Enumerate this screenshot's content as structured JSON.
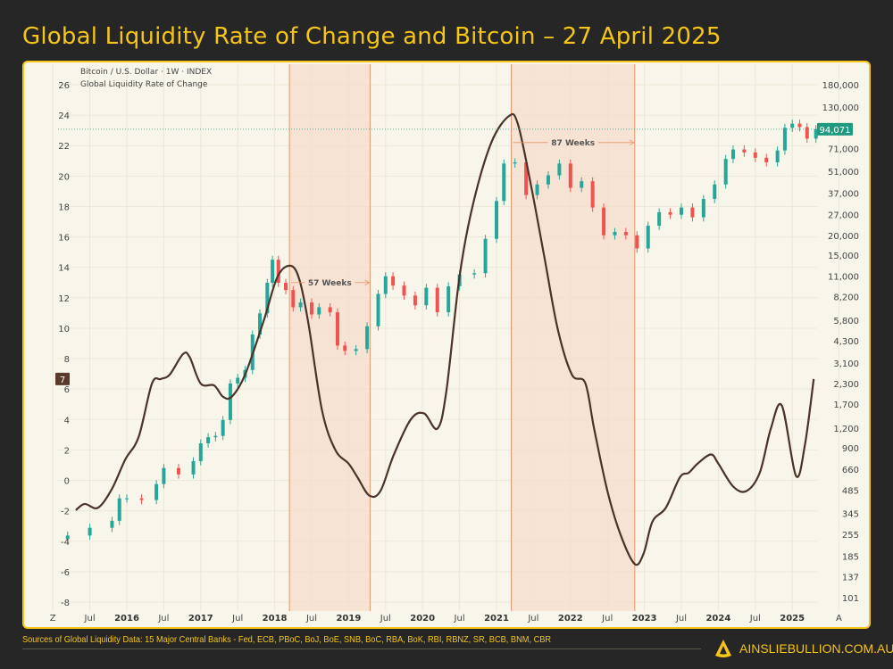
{
  "title": "Global Liquidity Rate of Change and Bitcoin – 27 April 2025",
  "footer": {
    "sources": "Sources of Global Liquidity Data: 15 Major Central Banks - Fed, ECB, PBoC, BoJ, BoE, SNB, BoC, RBA, BoK, RBI, RBNZ, SR, BCB, BNM, CBR",
    "logo_text": "AINSLIEBULLION.COM.AU"
  },
  "chart_data": {
    "type": "line+candlestick",
    "legend": [
      "Bitcoin / U.S. Dollar · 1W · INDEX",
      "Global Liquidity Rate of Change"
    ],
    "legend_placement": "top-left",
    "colors": {
      "up": "#26a69a",
      "down": "#ef5350",
      "liquidity": "#4a3328",
      "shade": "#f6dccb",
      "marker": "#e8956b",
      "accent": "#f5c518",
      "last_price_bg": "#1f9a7f"
    },
    "left_axis": {
      "range": [
        -8,
        26
      ],
      "ticks": [
        26,
        24,
        22,
        20,
        18,
        16,
        14,
        12,
        10,
        8,
        6,
        4,
        2,
        0,
        -2,
        -4,
        -6,
        -8
      ],
      "current_label": "7"
    },
    "right_axis": {
      "scale": "log",
      "range": [
        101,
        180000
      ],
      "ticks": [
        "180,000",
        "130,000",
        "71,000",
        "51,000",
        "37,000",
        "27,000",
        "20,000",
        "15,000",
        "11,000",
        "8,200",
        "5,800",
        "4,300",
        "3,100",
        "2,300",
        "1,700",
        "1,200",
        "900",
        "660",
        "485",
        "345",
        "255",
        "185",
        "137",
        "101"
      ],
      "last_price": 94071,
      "last_price_label": "94,071"
    },
    "x_axis": {
      "labels": [
        {
          "t": 2015.0,
          "text": "Z"
        },
        {
          "t": 2015.5,
          "text": "Jul"
        },
        {
          "t": 2016,
          "text": "2016"
        },
        {
          "t": 2016.5,
          "text": "Jul"
        },
        {
          "t": 2017,
          "text": "2017"
        },
        {
          "t": 2017.5,
          "text": "Jul"
        },
        {
          "t": 2018,
          "text": "2018"
        },
        {
          "t": 2018.5,
          "text": "Jul"
        },
        {
          "t": 2019,
          "text": "2019"
        },
        {
          "t": 2019.5,
          "text": "Jul"
        },
        {
          "t": 2020,
          "text": "2020"
        },
        {
          "t": 2020.5,
          "text": "Jul"
        },
        {
          "t": 2021,
          "text": "2021"
        },
        {
          "t": 2021.5,
          "text": "Jul"
        },
        {
          "t": 2022,
          "text": "2022"
        },
        {
          "t": 2022.5,
          "text": "Jul"
        },
        {
          "t": 2023,
          "text": "2023"
        },
        {
          "t": 2023.5,
          "text": "Jul"
        },
        {
          "t": 2024,
          "text": "2024"
        },
        {
          "t": 2024.5,
          "text": "Jul"
        },
        {
          "t": 2025,
          "text": "2025"
        },
        {
          "t": 2025.63,
          "text": "A"
        }
      ]
    },
    "shaded_periods": [
      {
        "start": 2018.2,
        "end": 2019.29,
        "label": "57 Weeks",
        "label_value": 13.0
      },
      {
        "start": 2021.2,
        "end": 2022.87,
        "label": "87 Weeks",
        "label_value": 22.2
      }
    ],
    "liquidity_roc": [
      [
        2015.31,
        -1.96
      ],
      [
        2015.43,
        -1.55
      ],
      [
        2015.61,
        -1.8
      ],
      [
        2015.8,
        -0.55
      ],
      [
        2015.98,
        1.38
      ],
      [
        2016.16,
        2.85
      ],
      [
        2016.34,
        6.36
      ],
      [
        2016.46,
        6.66
      ],
      [
        2016.58,
        6.95
      ],
      [
        2016.76,
        8.3
      ],
      [
        2016.85,
        8.1
      ],
      [
        2017.0,
        6.36
      ],
      [
        2017.18,
        6.24
      ],
      [
        2017.3,
        5.5
      ],
      [
        2017.42,
        5.5
      ],
      [
        2017.6,
        6.95
      ],
      [
        2017.85,
        10.47
      ],
      [
        2018.04,
        13.4
      ],
      [
        2018.22,
        14.1
      ],
      [
        2018.34,
        13.1
      ],
      [
        2018.46,
        10.2
      ],
      [
        2018.64,
        4.6
      ],
      [
        2018.82,
        2.0
      ],
      [
        2019.0,
        1.1
      ],
      [
        2019.12,
        0.2
      ],
      [
        2019.28,
        -1.0
      ],
      [
        2019.43,
        -0.7
      ],
      [
        2019.61,
        1.67
      ],
      [
        2019.84,
        4.0
      ],
      [
        2020.02,
        4.4
      ],
      [
        2020.2,
        3.4
      ],
      [
        2020.32,
        5.8
      ],
      [
        2020.5,
        13.4
      ],
      [
        2020.68,
        18.1
      ],
      [
        2020.93,
        22.2
      ],
      [
        2021.17,
        23.95
      ],
      [
        2021.29,
        23.4
      ],
      [
        2021.47,
        19.3
      ],
      [
        2021.65,
        14.6
      ],
      [
        2021.83,
        9.9
      ],
      [
        2022.02,
        6.95
      ],
      [
        2022.2,
        6.4
      ],
      [
        2022.32,
        3.4
      ],
      [
        2022.5,
        -0.7
      ],
      [
        2022.68,
        -3.6
      ],
      [
        2022.87,
        -5.5
      ],
      [
        2022.99,
        -4.8
      ],
      [
        2023.11,
        -2.7
      ],
      [
        2023.29,
        -1.8
      ],
      [
        2023.48,
        0.2
      ],
      [
        2023.6,
        0.5
      ],
      [
        2023.72,
        1.1
      ],
      [
        2023.9,
        1.7
      ],
      [
        2024.0,
        1.1
      ],
      [
        2024.2,
        -0.4
      ],
      [
        2024.38,
        -0.7
      ],
      [
        2024.56,
        0.5
      ],
      [
        2024.71,
        3.4
      ],
      [
        2024.86,
        4.9
      ],
      [
        2025.05,
        0.3
      ],
      [
        2025.17,
        2.3
      ],
      [
        2025.29,
        6.66
      ]
    ],
    "btc_close": [
      [
        2015.2,
        250
      ],
      [
        2015.5,
        280
      ],
      [
        2015.8,
        310
      ],
      [
        2015.9,
        430
      ],
      [
        2016.0,
        430
      ],
      [
        2016.2,
        420
      ],
      [
        2016.4,
        530
      ],
      [
        2016.5,
        670
      ],
      [
        2016.7,
        610
      ],
      [
        2016.9,
        740
      ],
      [
        2017.0,
        960
      ],
      [
        2017.1,
        1050
      ],
      [
        2017.2,
        1070
      ],
      [
        2017.3,
        1350
      ],
      [
        2017.4,
        2300
      ],
      [
        2017.5,
        2500
      ],
      [
        2017.6,
        2800
      ],
      [
        2017.7,
        4700
      ],
      [
        2017.8,
        6400
      ],
      [
        2017.9,
        10000
      ],
      [
        2017.97,
        14000
      ],
      [
        2018.05,
        10000
      ],
      [
        2018.15,
        9000
      ],
      [
        2018.25,
        7000
      ],
      [
        2018.35,
        7500
      ],
      [
        2018.5,
        6300
      ],
      [
        2018.6,
        7000
      ],
      [
        2018.75,
        6500
      ],
      [
        2018.85,
        4000
      ],
      [
        2018.95,
        3700
      ],
      [
        2019.1,
        3800
      ],
      [
        2019.25,
        5300
      ],
      [
        2019.4,
        8500
      ],
      [
        2019.5,
        11000
      ],
      [
        2019.6,
        9600
      ],
      [
        2019.75,
        8300
      ],
      [
        2019.9,
        7200
      ],
      [
        2020.05,
        9300
      ],
      [
        2020.2,
        6500
      ],
      [
        2020.35,
        9500
      ],
      [
        2020.5,
        11300
      ],
      [
        2020.7,
        11500
      ],
      [
        2020.85,
        19000
      ],
      [
        2021.0,
        33000
      ],
      [
        2021.1,
        57000
      ],
      [
        2021.25,
        58000
      ],
      [
        2021.4,
        36000
      ],
      [
        2021.55,
        42000
      ],
      [
        2021.7,
        48000
      ],
      [
        2021.85,
        57000
      ],
      [
        2022.0,
        40000
      ],
      [
        2022.15,
        44000
      ],
      [
        2022.3,
        30000
      ],
      [
        2022.45,
        20000
      ],
      [
        2022.6,
        21000
      ],
      [
        2022.75,
        20000
      ],
      [
        2022.9,
        16500
      ],
      [
        2023.05,
        23000
      ],
      [
        2023.2,
        28000
      ],
      [
        2023.35,
        27000
      ],
      [
        2023.5,
        30000
      ],
      [
        2023.65,
        26000
      ],
      [
        2023.8,
        34000
      ],
      [
        2023.95,
        42000
      ],
      [
        2024.1,
        61000
      ],
      [
        2024.2,
        70000
      ],
      [
        2024.35,
        67000
      ],
      [
        2024.5,
        62000
      ],
      [
        2024.65,
        58000
      ],
      [
        2024.8,
        69000
      ],
      [
        2024.9,
        96000
      ],
      [
        2025.0,
        102000
      ],
      [
        2025.1,
        97000
      ],
      [
        2025.2,
        82000
      ],
      [
        2025.32,
        94071
      ]
    ]
  }
}
